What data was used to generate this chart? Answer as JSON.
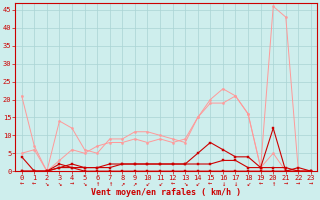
{
  "bg_color": "#ceeeed",
  "grid_color": "#aad4d4",
  "line_color_dark": "#cc0000",
  "line_color_light": "#ff9999",
  "xlabel": "Vent moyen/en rafales ( km/h )",
  "xlim": [
    -0.5,
    23.5
  ],
  "ylim": [
    0,
    47
  ],
  "yticks": [
    0,
    5,
    10,
    15,
    20,
    25,
    30,
    35,
    40,
    45
  ],
  "xticks": [
    0,
    1,
    2,
    3,
    4,
    5,
    6,
    7,
    8,
    9,
    10,
    11,
    12,
    13,
    14,
    15,
    16,
    17,
    18,
    19,
    20,
    21,
    22,
    23
  ],
  "series_light": [
    [
      21,
      7,
      0,
      14,
      12,
      6,
      5,
      9,
      9,
      11,
      11,
      10,
      9,
      8,
      15,
      20,
      23,
      21,
      16,
      1,
      46,
      43,
      0,
      0
    ],
    [
      5,
      6,
      0,
      3,
      6,
      5,
      7,
      8,
      8,
      9,
      8,
      9,
      8,
      9,
      15,
      19,
      19,
      21,
      16,
      1,
      5,
      0,
      0,
      0
    ]
  ],
  "series_dark": [
    [
      4,
      0,
      0,
      1,
      2,
      1,
      1,
      2,
      2,
      2,
      2,
      2,
      2,
      2,
      5,
      8,
      6,
      4,
      4,
      1,
      12,
      0,
      1,
      0
    ],
    [
      0,
      0,
      0,
      2,
      1,
      1,
      1,
      1,
      2,
      2,
      2,
      2,
      2,
      2,
      2,
      2,
      3,
      3,
      1,
      1,
      1,
      1,
      0,
      0
    ],
    [
      0,
      0,
      0,
      1,
      1,
      0,
      0,
      0,
      0,
      0,
      0,
      0,
      0,
      0,
      0,
      0,
      0,
      0,
      0,
      0,
      0,
      0,
      0,
      0
    ]
  ],
  "arrows": [
    "←",
    "←",
    "↘",
    "↘",
    "→",
    "↘",
    "↑",
    "↑",
    "↗",
    "↗",
    "↙",
    "↙",
    "←",
    "↘",
    "↙",
    "←",
    "↓",
    "↓",
    "↙",
    "←",
    "↑",
    "→",
    "→",
    "→"
  ],
  "tick_fontsize": 5,
  "label_fontsize": 6,
  "ytick_fontsize": 5,
  "linewidth_light": 0.7,
  "linewidth_dark": 0.8,
  "markersize": 1.5
}
